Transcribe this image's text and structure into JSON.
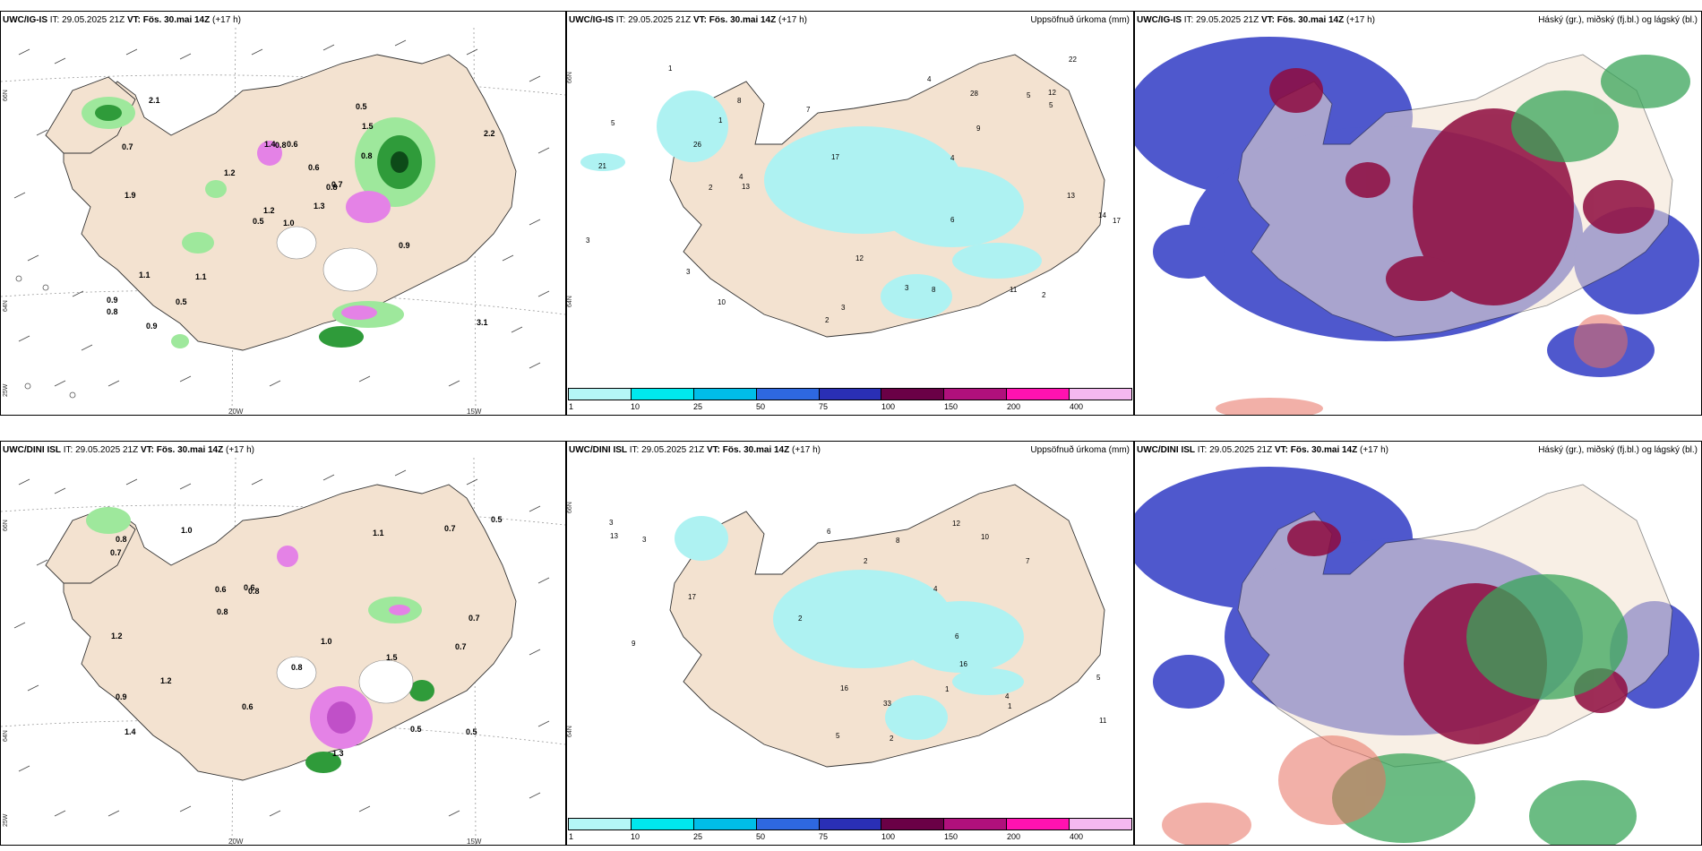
{
  "panels": [
    {
      "model": "UWC/IG-IS",
      "it_label": "IT:",
      "it_value": "29.05.2025 21Z",
      "vt_label": "VT:",
      "vt_value": "Fös. 30.mai 14Z",
      "lead": "(+17 h)",
      "subtitle": ""
    },
    {
      "model": "UWC/IG-IS",
      "it_label": "IT:",
      "it_value": "29.05.2025 21Z",
      "vt_label": "VT:",
      "vt_value": "Fös. 30.mai 14Z",
      "lead": "(+17 h)",
      "subtitle": "Uppsöfnuð úrkoma (mm)"
    },
    {
      "model": "UWC/IG-IS",
      "it_label": "IT:",
      "it_value": "29.05.2025 21Z",
      "vt_label": "VT:",
      "vt_value": "Fös. 30.mai 14Z",
      "lead": "(+17 h)",
      "subtitle": "Háský (gr.), miðský (fj.bl.) og lágský (bl.)"
    },
    {
      "model": "UWC/DINI ISL",
      "it_label": "IT:",
      "it_value": "29.05.2025 21Z",
      "vt_label": "VT:",
      "vt_value": "Fös. 30.mai 14Z",
      "lead": "(+17 h)",
      "subtitle": ""
    },
    {
      "model": "UWC/DINI ISL",
      "it_label": "IT:",
      "it_value": "29.05.2025 21Z",
      "vt_label": "VT:",
      "vt_value": "Fös. 30.mai 14Z",
      "lead": "(+17 h)",
      "subtitle": "Uppsöfnuð úrkoma (mm)"
    },
    {
      "model": "UWC/DINI ISL",
      "it_label": "IT:",
      "it_value": "29.05.2025 21Z",
      "vt_label": "VT:",
      "vt_value": "Fös. 30.mai 14Z",
      "lead": "(+17 h)",
      "subtitle": "Háský (gr.), miðský (fj.bl.) og lágský (bl.)"
    }
  ],
  "axis_labels": {
    "lon_20": "20W",
    "lon_15": "15W",
    "lat_66": "66N",
    "lat_64": "64N",
    "lon_25": "25W"
  },
  "colorbar": {
    "labels": [
      "1",
      "10",
      "25",
      "50",
      "75",
      "100",
      "150",
      "200",
      "400"
    ],
    "colors": [
      "#b4f7f7",
      "#00e8ee",
      "#00bde8",
      "#2e68e0",
      "#2a2fb5",
      "#6a0046",
      "#b0107c",
      "#ff12b0",
      "#f5b8f0"
    ]
  },
  "map_colors": {
    "land": "#f3e2d0",
    "sea": "#ffffff",
    "precip_light": "#9ee89c",
    "precip_mid": "#2f9b3a",
    "precip_dark": "#0d4a18",
    "precip_pink": "#e482e6",
    "accum_cyan": "#aef2f2",
    "low_cloud": "#3c46c8",
    "mid_cloud": "#8e0b3e",
    "high_cloud": "#3aa55a"
  },
  "precip_labels_ig": [
    "1.0",
    "0.7",
    "1.2",
    "0.9",
    "0.8",
    "1.1",
    "0.5",
    "0.6",
    "1.5",
    "1.3",
    "2.1",
    "3.1",
    "1.9",
    "2.2",
    "0.5",
    "0.8",
    "0.9",
    "1.4",
    "0.6",
    "1.1",
    "1.2",
    "0.8",
    "0.5",
    "0.8",
    "0.7",
    "0.9"
  ],
  "precip_labels_dini": [
    "1.5",
    "0.7",
    "1.4",
    "1.0",
    "0.8",
    "0.5",
    "0.9",
    "1.1",
    "0.6",
    "1.3",
    "0.7",
    "1.2",
    "0.8",
    "0.5",
    "0.6",
    "0.7",
    "0.8",
    "1.0",
    "0.6",
    "1.2",
    "0.5",
    "0.7",
    "0.8"
  ],
  "accum_labels_ig": [
    "5",
    "1",
    "4",
    "3",
    "5",
    "2",
    "6",
    "13",
    "12",
    "17",
    "14",
    "8",
    "9",
    "3",
    "21",
    "10",
    "4",
    "7",
    "2",
    "3",
    "11",
    "13",
    "17",
    "12",
    "28",
    "26",
    "5",
    "4",
    "1",
    "2",
    "3",
    "8",
    "22"
  ],
  "accum_labels_dini": [
    "2",
    "1",
    "3",
    "7",
    "5",
    "6",
    "2",
    "12",
    "17",
    "9",
    "4",
    "8",
    "6",
    "3",
    "11",
    "10",
    "5",
    "1",
    "33",
    "16",
    "13",
    "16",
    "4",
    "2"
  ]
}
